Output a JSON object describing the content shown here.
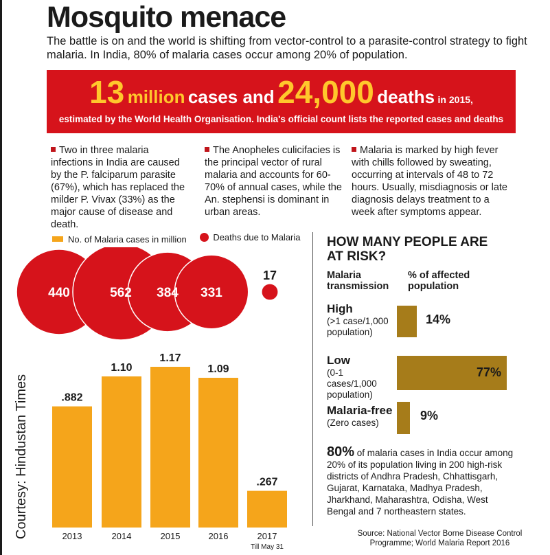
{
  "headline": {
    "title": "Mosquito menace",
    "subtitle": "The battle is on and the world is shifting from vector-control to a parasite-control strategy to fight malaria. In India, 80% of malaria cases occur among 20% of population."
  },
  "banner": {
    "cases_num": "13",
    "million": "million",
    "cases_and": "cases and",
    "deaths_num": "24,000",
    "deaths": "deaths",
    "year": "in 2015,",
    "sub": "estimated by the World Health Organisation. India's official count lists the reported cases and deaths"
  },
  "notes": [
    "Two in three malaria infections in India are caused by the P. falciparum parasite (67%), which has replaced the milder P. Vivax (33%) as the major cause of disease and death.",
    "The Anopheles culicifacies is the principal vector of rural malaria and accounts for 60-70% of annual cases, while the An. stephensi is dominant in urban areas.",
    "Malaria is marked by high fever with chills followed by sweating, occurring at intervals of 48 to 72 hours. Usually, misdiagnosis or late diagnosis delays treatment to a week after symptoms appear."
  ],
  "legend": {
    "cases": "No. of Malaria cases in million",
    "deaths": "Deaths due to Malaria"
  },
  "chart_data": {
    "type": "bar",
    "title": "",
    "xlabel": "",
    "ylabel": "",
    "ylim": [
      0,
      1.25
    ],
    "categories": [
      "2013",
      "2014",
      "2015",
      "2016",
      "2017"
    ],
    "category_notes": [
      "",
      "",
      "",
      "",
      "Till May 31"
    ],
    "series": [
      {
        "name": "No. of Malaria cases in million",
        "values": [
          0.882,
          1.1,
          1.17,
          1.09,
          0.267
        ],
        "labels": [
          ".882",
          "1.10",
          "1.17",
          "1.09",
          ".267"
        ]
      },
      {
        "name": "Deaths due to Malaria",
        "values": [
          440,
          562,
          384,
          331,
          17
        ],
        "labels": [
          "440",
          "562",
          "384",
          "331",
          "17"
        ]
      }
    ]
  },
  "colors": {
    "bar": "#f5a51b",
    "bubble": "#d6131b",
    "risk_bar": "#a67c1a",
    "banner": "#d6131b",
    "banner_num": "#ffc72c"
  },
  "risk": {
    "title": "HOW MANY PEOPLE ARE AT RISK?",
    "col1": "Malaria transmission",
    "col2": "% of affected population",
    "rows": [
      {
        "label": "High",
        "detail": "(>1 case/1,000 population)",
        "value": 14,
        "text": "14%"
      },
      {
        "label": "Low",
        "detail": "(0-1 cases/1,000 population)",
        "value": 77,
        "text": "77%"
      },
      {
        "label": "Malaria-free",
        "detail": "(Zero cases)",
        "value": 9,
        "text": "9%"
      }
    ],
    "summary_pct": "80%",
    "summary_text": "of malaria cases in India occur among 20% of its population living in 200 high-risk districts of Andhra Pradesh, Chhattisgarh, Gujarat, Karnataka, Madhya Pradesh, Jharkhand, Maharashtra, Odisha, West Bengal and 7 northeastern states."
  },
  "source": "Source: National Vector Borne Disease Control Programme; World Malaria Report 2016",
  "courtesy": "Courtesy: Hindustan Times"
}
